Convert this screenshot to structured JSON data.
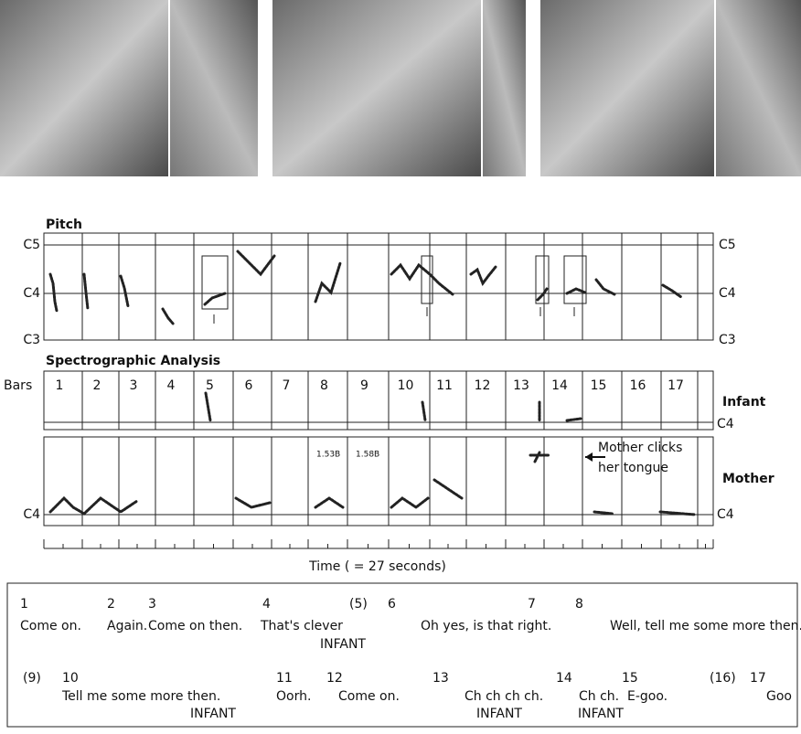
{
  "pitch": {
    "title": "Pitch",
    "left_labels": [
      "C5",
      "C4",
      "C3"
    ],
    "right_labels": [
      "C5",
      "C4",
      "C3"
    ]
  },
  "spectrograph": {
    "title": "Spectrographic Analysis",
    "bars_label": "Bars",
    "bars": [
      "1",
      "2",
      "3",
      "4",
      "5",
      "6",
      "7",
      "8",
      "9",
      "10",
      "11",
      "12",
      "13",
      "14",
      "15",
      "16",
      "17"
    ],
    "infant_label": "Infant",
    "infant_note": "C4",
    "mother_label": "Mother",
    "mother_notes": [
      "C4",
      "C4"
    ],
    "annotations": [
      "1.53B",
      "1.58B"
    ],
    "click_note": [
      "Mother clicks",
      "her tongue"
    ]
  },
  "time_label": "Time ( = 27 seconds)",
  "transcript": [
    {
      "numbers": [
        "1",
        "2",
        "3",
        "4",
        "(5)",
        "6",
        "7",
        "8"
      ],
      "phrases": [
        "Come on.",
        "Again.",
        "Come on then.",
        "That's clever",
        "Oh yes, is that right.",
        "Well, tell me some more then."
      ],
      "speakers": [
        "INFANT"
      ]
    },
    {
      "numbers": [
        "(9)",
        "10",
        "11",
        "12",
        "13",
        "14",
        "15",
        "(16)",
        "17"
      ],
      "phrases": [
        "Tell me some more then.",
        "Oorh.",
        "Come on.",
        "Ch ch ch ch.",
        "Ch ch.",
        "E-goo.",
        "Goo"
      ],
      "speakers": [
        "INFANT",
        "INFANT",
        "INFANT"
      ]
    }
  ]
}
